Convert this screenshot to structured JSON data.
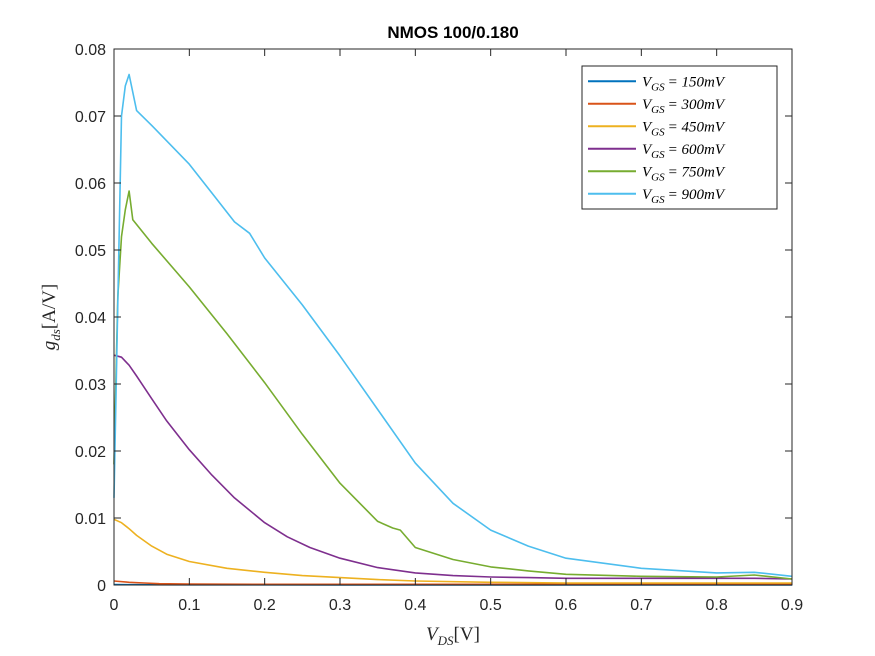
{
  "chart_data": {
    "type": "line",
    "title": "NMOS 100/0.180",
    "xlabel": "V_DS[V]",
    "ylabel": "g_ds[A/V]",
    "xlim": [
      0,
      0.9
    ],
    "ylim": [
      0,
      0.08
    ],
    "xticks": [
      0,
      0.1,
      0.2,
      0.3,
      0.4,
      0.5,
      0.6,
      0.7,
      0.8,
      0.9
    ],
    "xtick_labels": [
      "0",
      "0.1",
      "0.2",
      "0.3",
      "0.4",
      "0.5",
      "0.6",
      "0.7",
      "0.8",
      "0.9"
    ],
    "yticks": [
      0,
      0.01,
      0.02,
      0.03,
      0.04,
      0.05,
      0.06,
      0.07,
      0.08
    ],
    "ytick_labels": [
      "0",
      "0.01",
      "0.02",
      "0.03",
      "0.04",
      "0.05",
      "0.06",
      "0.07",
      "0.08"
    ],
    "grid": false,
    "legend_position": "top-right",
    "series": [
      {
        "name": "V_GS = 150mV",
        "color": "#0072BD",
        "x": [
          0,
          0.02,
          0.1,
          0.3,
          0.5,
          0.7,
          0.9
        ],
        "y": [
          8e-05,
          5e-05,
          3e-05,
          2e-05,
          2e-05,
          2e-05,
          2e-05
        ]
      },
      {
        "name": "V_GS = 300mV",
        "color": "#D95319",
        "x": [
          0,
          0.02,
          0.04,
          0.06,
          0.1,
          0.2,
          0.3,
          0.4,
          0.5,
          0.6,
          0.7,
          0.8,
          0.9
        ],
        "y": [
          0.0006,
          0.0004,
          0.0003,
          0.0002,
          0.00015,
          0.0001,
          0.0001,
          0.0001,
          0.0001,
          0.0001,
          0.0001,
          0.0001,
          0.0001
        ]
      },
      {
        "name": "V_GS = 450mV",
        "color": "#EDB120",
        "x": [
          0,
          0.01,
          0.02,
          0.03,
          0.05,
          0.07,
          0.1,
          0.15,
          0.2,
          0.25,
          0.3,
          0.35,
          0.4,
          0.5,
          0.6,
          0.7,
          0.8,
          0.9
        ],
        "y": [
          0.0098,
          0.0093,
          0.0084,
          0.0074,
          0.0058,
          0.0046,
          0.0035,
          0.0025,
          0.0019,
          0.0014,
          0.0011,
          0.0008,
          0.0006,
          0.0004,
          0.0003,
          0.0003,
          0.0003,
          0.0003
        ]
      },
      {
        "name": "V_GS = 600mV",
        "color": "#7E2F8E",
        "x": [
          0,
          0.01,
          0.02,
          0.03,
          0.05,
          0.07,
          0.1,
          0.13,
          0.16,
          0.2,
          0.23,
          0.26,
          0.3,
          0.35,
          0.4,
          0.45,
          0.5,
          0.55,
          0.6,
          0.7,
          0.8,
          0.85,
          0.9
        ],
        "y": [
          0.0343,
          0.034,
          0.0328,
          0.0312,
          0.0278,
          0.0245,
          0.0202,
          0.0164,
          0.013,
          0.0093,
          0.0072,
          0.0056,
          0.004,
          0.0026,
          0.0018,
          0.0014,
          0.0012,
          0.0011,
          0.001,
          0.001,
          0.001,
          0.001,
          0.0009
        ]
      },
      {
        "name": "V_GS = 750mV",
        "color": "#77AC30",
        "x": [
          0,
          0.005,
          0.01,
          0.015,
          0.02,
          0.025,
          0.05,
          0.1,
          0.15,
          0.2,
          0.25,
          0.3,
          0.35,
          0.37,
          0.38,
          0.4,
          0.45,
          0.5,
          0.55,
          0.6,
          0.7,
          0.8,
          0.85,
          0.9
        ],
        "y": [
          0.018,
          0.043,
          0.052,
          0.056,
          0.0588,
          0.0545,
          0.051,
          0.0445,
          0.0375,
          0.0302,
          0.0225,
          0.0152,
          0.0095,
          0.0085,
          0.0082,
          0.0056,
          0.0038,
          0.0027,
          0.0021,
          0.0016,
          0.0013,
          0.0012,
          0.0015,
          0.0009
        ]
      },
      {
        "name": "V_GS = 900mV",
        "color": "#4DBEEE",
        "x": [
          0,
          0.005,
          0.01,
          0.015,
          0.02,
          0.03,
          0.05,
          0.1,
          0.13,
          0.16,
          0.18,
          0.2,
          0.25,
          0.3,
          0.35,
          0.4,
          0.45,
          0.5,
          0.55,
          0.6,
          0.7,
          0.8,
          0.85,
          0.9
        ],
        "y": [
          0.013,
          0.042,
          0.07,
          0.0745,
          0.0762,
          0.0708,
          0.0686,
          0.0628,
          0.0585,
          0.0542,
          0.0525,
          0.0488,
          0.0418,
          0.0342,
          0.0262,
          0.0182,
          0.0122,
          0.0082,
          0.0058,
          0.004,
          0.0025,
          0.0018,
          0.0019,
          0.0013
        ]
      }
    ]
  },
  "legend": {
    "base": "V",
    "subscript": "GS",
    "entries": [
      "= 150mV",
      "= 300mV",
      "= 450mV",
      "= 600mV",
      "= 750mV",
      "= 900mV"
    ]
  },
  "labels": {
    "x_base": "V",
    "x_sub": "DS",
    "x_unit": "[V]",
    "y_base": "g",
    "y_sub": "ds",
    "y_unit": "[A/V]"
  }
}
